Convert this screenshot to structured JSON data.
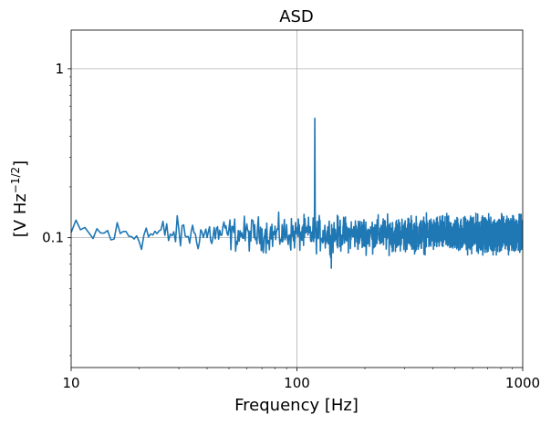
{
  "chart_data": {
    "type": "line",
    "title": "ASD",
    "xlabel": "Frequency [Hz]",
    "ylabel_main": "[V Hz",
    "ylabel_sup": "−1/2",
    "ylabel_end": "]",
    "xscale": "log",
    "yscale": "log",
    "xlim": [
      10,
      1000
    ],
    "ylim": [
      0.017,
      1.7
    ],
    "grid": true,
    "line_color": "#1f77b4",
    "x_ticks": [
      {
        "value": 10,
        "label": "10"
      },
      {
        "value": 100,
        "label": "100"
      },
      {
        "value": 1000,
        "label": "1000"
      }
    ],
    "y_ticks": [
      {
        "value": 0.1,
        "label": "0.1"
      },
      {
        "value": 1,
        "label": "1"
      }
    ],
    "series": [
      {
        "baseline": 0.105,
        "x_range": [
          10,
          1000
        ],
        "df": 0.5,
        "noise_low": 0.08,
        "noise_high": 0.16,
        "peak": {
          "x": 120,
          "y": 0.51
        },
        "dip": {
          "x": 142,
          "y": 0.066
        }
      }
    ]
  }
}
